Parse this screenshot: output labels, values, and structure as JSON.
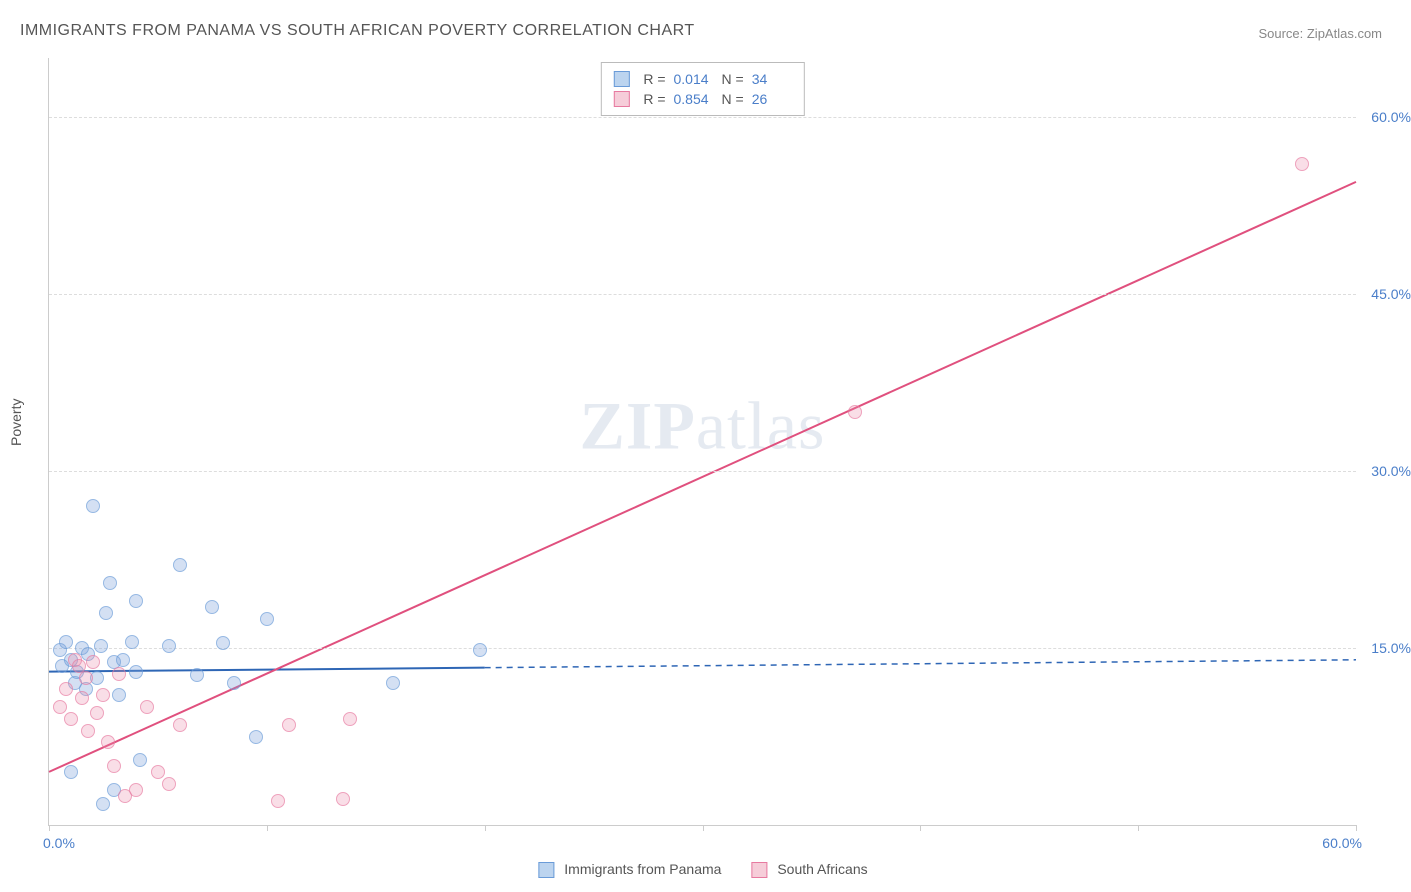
{
  "title": "IMMIGRANTS FROM PANAMA VS SOUTH AFRICAN POVERTY CORRELATION CHART",
  "source": "Source: ZipAtlas.com",
  "ylabel": "Poverty",
  "watermark_bold": "ZIP",
  "watermark_rest": "atlas",
  "chart": {
    "type": "scatter",
    "xlim": [
      0,
      60
    ],
    "ylim": [
      0,
      65
    ],
    "background_color": "#ffffff",
    "grid_color": "#dddddd",
    "axis_color": "#cccccc",
    "tick_color": "#4a7ec9",
    "label_color": "#555555",
    "yticks": [
      15,
      30,
      45,
      60
    ],
    "ytick_labels": [
      "15.0%",
      "30.0%",
      "45.0%",
      "60.0%"
    ],
    "xticks": [
      0,
      10,
      20,
      30,
      40,
      50,
      60
    ],
    "x_start_label": "0.0%",
    "x_end_label": "60.0%",
    "marker_radius": 7,
    "series": [
      {
        "name": "Immigrants from Panama",
        "color_fill": "rgba(120,160,220,0.45)",
        "color_stroke": "#6a9bd8",
        "swatch_fill": "#bcd4ef",
        "swatch_border": "#6a9bd8",
        "R": "0.014",
        "N": "34",
        "trend": {
          "y_at_x0": 13.0,
          "y_at_x60": 14.0,
          "solid_until_x": 20,
          "color": "#2e66b5",
          "width": 2
        },
        "points": [
          [
            0.5,
            14.8
          ],
          [
            0.6,
            13.5
          ],
          [
            0.8,
            15.5
          ],
          [
            1.0,
            14.0
          ],
          [
            1.2,
            12.0
          ],
          [
            1.3,
            13.0
          ],
          [
            1.5,
            15.0
          ],
          [
            1.7,
            11.5
          ],
          [
            1.8,
            14.5
          ],
          [
            2.0,
            27.0
          ],
          [
            2.2,
            12.5
          ],
          [
            2.4,
            15.2
          ],
          [
            2.6,
            18.0
          ],
          [
            2.8,
            20.5
          ],
          [
            3.0,
            13.8
          ],
          [
            3.2,
            11.0
          ],
          [
            3.4,
            14.0
          ],
          [
            3.8,
            15.5
          ],
          [
            4.0,
            19.0
          ],
          [
            4.0,
            13.0
          ],
          [
            4.2,
            5.5
          ],
          [
            5.5,
            15.2
          ],
          [
            6.0,
            22.0
          ],
          [
            6.8,
            12.7
          ],
          [
            7.5,
            18.5
          ],
          [
            8.0,
            15.4
          ],
          [
            8.5,
            12.0
          ],
          [
            9.5,
            7.5
          ],
          [
            10.0,
            17.5
          ],
          [
            15.8,
            12.0
          ],
          [
            2.5,
            1.8
          ],
          [
            3.0,
            3.0
          ],
          [
            1.0,
            4.5
          ],
          [
            19.8,
            14.8
          ]
        ]
      },
      {
        "name": "South Africans",
        "color_fill": "rgba(235,140,170,0.40)",
        "color_stroke": "#e77aa0",
        "swatch_fill": "#f6cdd9",
        "swatch_border": "#e77aa0",
        "R": "0.854",
        "N": "26",
        "trend": {
          "y_at_x0": 4.5,
          "y_at_x60": 54.5,
          "solid_until_x": 60,
          "color": "#e0507e",
          "width": 2
        },
        "points": [
          [
            0.5,
            10.0
          ],
          [
            0.8,
            11.5
          ],
          [
            1.0,
            9.0
          ],
          [
            1.2,
            14.0
          ],
          [
            1.4,
            13.5
          ],
          [
            1.5,
            10.8
          ],
          [
            1.7,
            12.5
          ],
          [
            1.8,
            8.0
          ],
          [
            2.0,
            13.8
          ],
          [
            2.2,
            9.5
          ],
          [
            2.5,
            11.0
          ],
          [
            2.7,
            7.0
          ],
          [
            3.0,
            5.0
          ],
          [
            3.2,
            12.8
          ],
          [
            3.5,
            2.5
          ],
          [
            4.0,
            3.0
          ],
          [
            4.5,
            10.0
          ],
          [
            5.0,
            4.5
          ],
          [
            5.5,
            3.5
          ],
          [
            6.0,
            8.5
          ],
          [
            10.5,
            2.0
          ],
          [
            11.0,
            8.5
          ],
          [
            13.5,
            2.2
          ],
          [
            13.8,
            9.0
          ],
          [
            37.0,
            35.0
          ],
          [
            57.5,
            56.0
          ]
        ]
      }
    ]
  },
  "legend_labels": {
    "R_label": "R =",
    "N_label": "N ="
  }
}
